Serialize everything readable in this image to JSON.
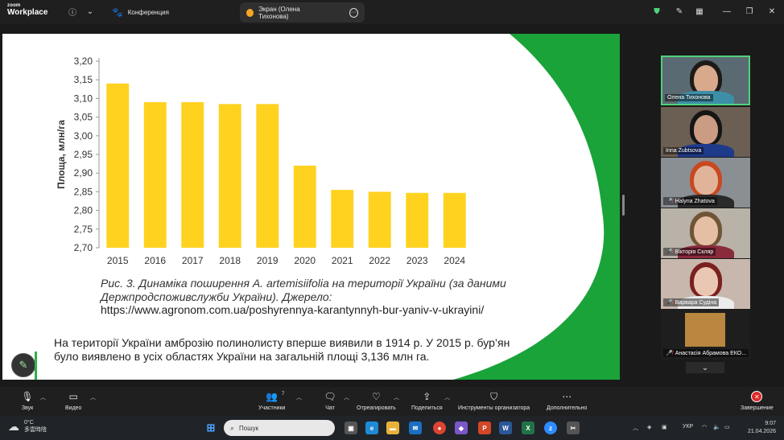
{
  "app": {
    "logo_line1": "zoom",
    "logo_line2": "Workplace",
    "tabs": [
      {
        "label": "Конференция"
      },
      {
        "label": "Экран (Олена Тихонова)"
      }
    ]
  },
  "share": {
    "chart_data": {
      "type": "bar",
      "categories": [
        "2015",
        "2016",
        "2017",
        "2018",
        "2019",
        "2020",
        "2021",
        "2022",
        "2023",
        "2024"
      ],
      "values": [
        3.14,
        3.09,
        3.09,
        3.085,
        3.085,
        2.92,
        2.855,
        2.85,
        2.847,
        2.847
      ],
      "ylabel": "Площа, млн/га",
      "ylim": [
        2.7,
        3.2
      ],
      "yticks": [
        "2,70",
        "2,75",
        "2,80",
        "2,85",
        "2,90",
        "2,95",
        "3,00",
        "3,05",
        "3,10",
        "3,15",
        "3,20"
      ],
      "bar_color": "#FFD21F",
      "grid": false
    },
    "caption": "Рис. 3. Динаміка поширення A. artemisiifolia на території України (за даними Держпродспоживслужби України). Джерело:",
    "caption_url": "https://www.agronom.com.ua/poshyrennya-karantynnyh-bur-yaniv-v-ukrayini/",
    "body_text": "На території України амброзію полинолисту вперше виявили в 1914 р. У 2015 р. бур’ян було виявлено  в усіх областях України на загальній площі 3,136 млн га.",
    "accent_color": "#19A338"
  },
  "participants": [
    {
      "name": "Олена Тихонова",
      "muted": false,
      "active": true
    },
    {
      "name": "Inna Zubtsova",
      "muted": false,
      "active": false
    },
    {
      "name": "Halyna Zhatova",
      "muted": true,
      "active": false
    },
    {
      "name": "Вікторія Скляр",
      "muted": true,
      "active": false
    },
    {
      "name": "Варвара Судіна",
      "muted": true,
      "active": false
    },
    {
      "name": "Анастасія Абрамова ЕКО...",
      "muted": true,
      "active": false
    }
  ],
  "toolbar": {
    "audio": "Звук",
    "video": "Видео",
    "participants": "Участники",
    "participants_count": "7",
    "chat": "Чат",
    "react": "Отреагировать",
    "share": "Поделиться",
    "host_tools": "Инструменты организатора",
    "more": "Дополнительно",
    "end": "Завершение"
  },
  "taskbar": {
    "temp": "0°C",
    "weather": "多雲時陰",
    "search_placeholder": "Пошук",
    "lang": "УКР",
    "time": "9:07",
    "date": "21.04.2026"
  }
}
